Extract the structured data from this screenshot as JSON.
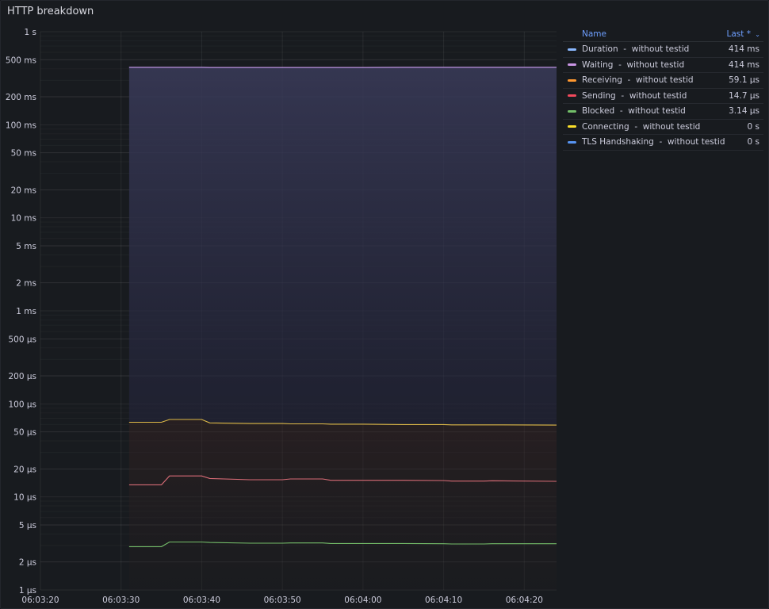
{
  "panel": {
    "title": "HTTP breakdown"
  },
  "legend": {
    "name_header": "Name",
    "last_header": "Last *",
    "sort_icon": "chevron-down-icon",
    "items": [
      {
        "name": "Duration - without testid",
        "value": "414 ms",
        "color": "#8ab8ff"
      },
      {
        "name": "Waiting - without testid",
        "value": "414 ms",
        "color": "#ca95e5"
      },
      {
        "name": "Receiving - without testid",
        "value": "59.1 µs",
        "color": "#ff9830"
      },
      {
        "name": "Sending - without testid",
        "value": "14.7 µs",
        "color": "#f2495c"
      },
      {
        "name": "Blocked - without testid",
        "value": "3.14 µs",
        "color": "#73bf69"
      },
      {
        "name": "Connecting - without testid",
        "value": "0 s",
        "color": "#fade2a"
      },
      {
        "name": "TLS Handshaking - without testid",
        "value": "0 s",
        "color": "#5794f2"
      }
    ]
  },
  "chart_data": {
    "type": "line",
    "title": "HTTP breakdown",
    "x_tick_labels": [
      "06:03:20",
      "06:03:30",
      "06:03:40",
      "06:03:50",
      "06:04:00",
      "06:04:10",
      "06:04:20"
    ],
    "y_tick_labels": [
      "1 s",
      "500 ms",
      "200 ms",
      "100 ms",
      "50 ms",
      "20 ms",
      "10 ms",
      "5 ms",
      "2 ms",
      "1 ms",
      "500 µs",
      "200 µs",
      "100 µs",
      "50 µs",
      "20 µs",
      "10 µs",
      "5 µs",
      "2 µs",
      "1 µs"
    ],
    "y_tick_values_s": [
      1,
      0.5,
      0.2,
      0.1,
      0.05,
      0.02,
      0.01,
      0.005,
      0.002,
      0.001,
      0.0005,
      0.0002,
      0.0001,
      5e-05,
      2e-05,
      1e-05,
      5e-06,
      2e-06,
      1e-06
    ],
    "y_scale": "log",
    "ylim_s": [
      1e-06,
      1
    ],
    "xlim": [
      "06:03:20",
      "06:04:24"
    ],
    "grid": true,
    "legend_placement": "right",
    "x": [
      "06:03:31",
      "06:03:35",
      "06:03:36",
      "06:03:40",
      "06:03:41",
      "06:03:46",
      "06:03:50",
      "06:03:51",
      "06:03:55",
      "06:03:56",
      "06:04:00",
      "06:04:05",
      "06:04:10",
      "06:04:11",
      "06:04:15",
      "06:04:16",
      "06:04:24"
    ],
    "series": [
      {
        "name": "Duration - without testid",
        "color": "#8ab8ff",
        "values_s": [
          0.414,
          0.414,
          0.414,
          0.414,
          0.413,
          0.413,
          0.413,
          0.413,
          0.413,
          0.413,
          0.413,
          0.414,
          0.414,
          0.414,
          0.414,
          0.414,
          0.414
        ]
      },
      {
        "name": "Waiting - without testid",
        "color": "#ca95e5",
        "values_s": [
          0.414,
          0.414,
          0.414,
          0.414,
          0.413,
          0.413,
          0.413,
          0.413,
          0.413,
          0.413,
          0.413,
          0.414,
          0.414,
          0.414,
          0.414,
          0.414,
          0.414
        ]
      },
      {
        "name": "Receiving - without testid",
        "color": "#e8c24a",
        "values_s": [
          6.35e-05,
          6.35e-05,
          6.8e-05,
          6.8e-05,
          6.25e-05,
          6.15e-05,
          6.15e-05,
          6.1e-05,
          6.1e-05,
          6.05e-05,
          6.05e-05,
          6e-05,
          6e-05,
          5.95e-05,
          5.95e-05,
          5.95e-05,
          5.91e-05
        ]
      },
      {
        "name": "Sending - without testid",
        "color": "#e0707a",
        "values_s": [
          1.35e-05,
          1.35e-05,
          1.68e-05,
          1.68e-05,
          1.58e-05,
          1.53e-05,
          1.53e-05,
          1.56e-05,
          1.56e-05,
          1.51e-05,
          1.51e-05,
          1.51e-05,
          1.5e-05,
          1.48e-05,
          1.48e-05,
          1.49e-05,
          1.47e-05
        ]
      },
      {
        "name": "Blocked - without testid",
        "color": "#7ac76f",
        "values_s": [
          2.92e-06,
          2.92e-06,
          3.28e-06,
          3.28e-06,
          3.24e-06,
          3.18e-06,
          3.18e-06,
          3.2e-06,
          3.2e-06,
          3.16e-06,
          3.16e-06,
          3.16e-06,
          3.14e-06,
          3.12e-06,
          3.12e-06,
          3.14e-06,
          3.14e-06
        ]
      }
    ]
  }
}
